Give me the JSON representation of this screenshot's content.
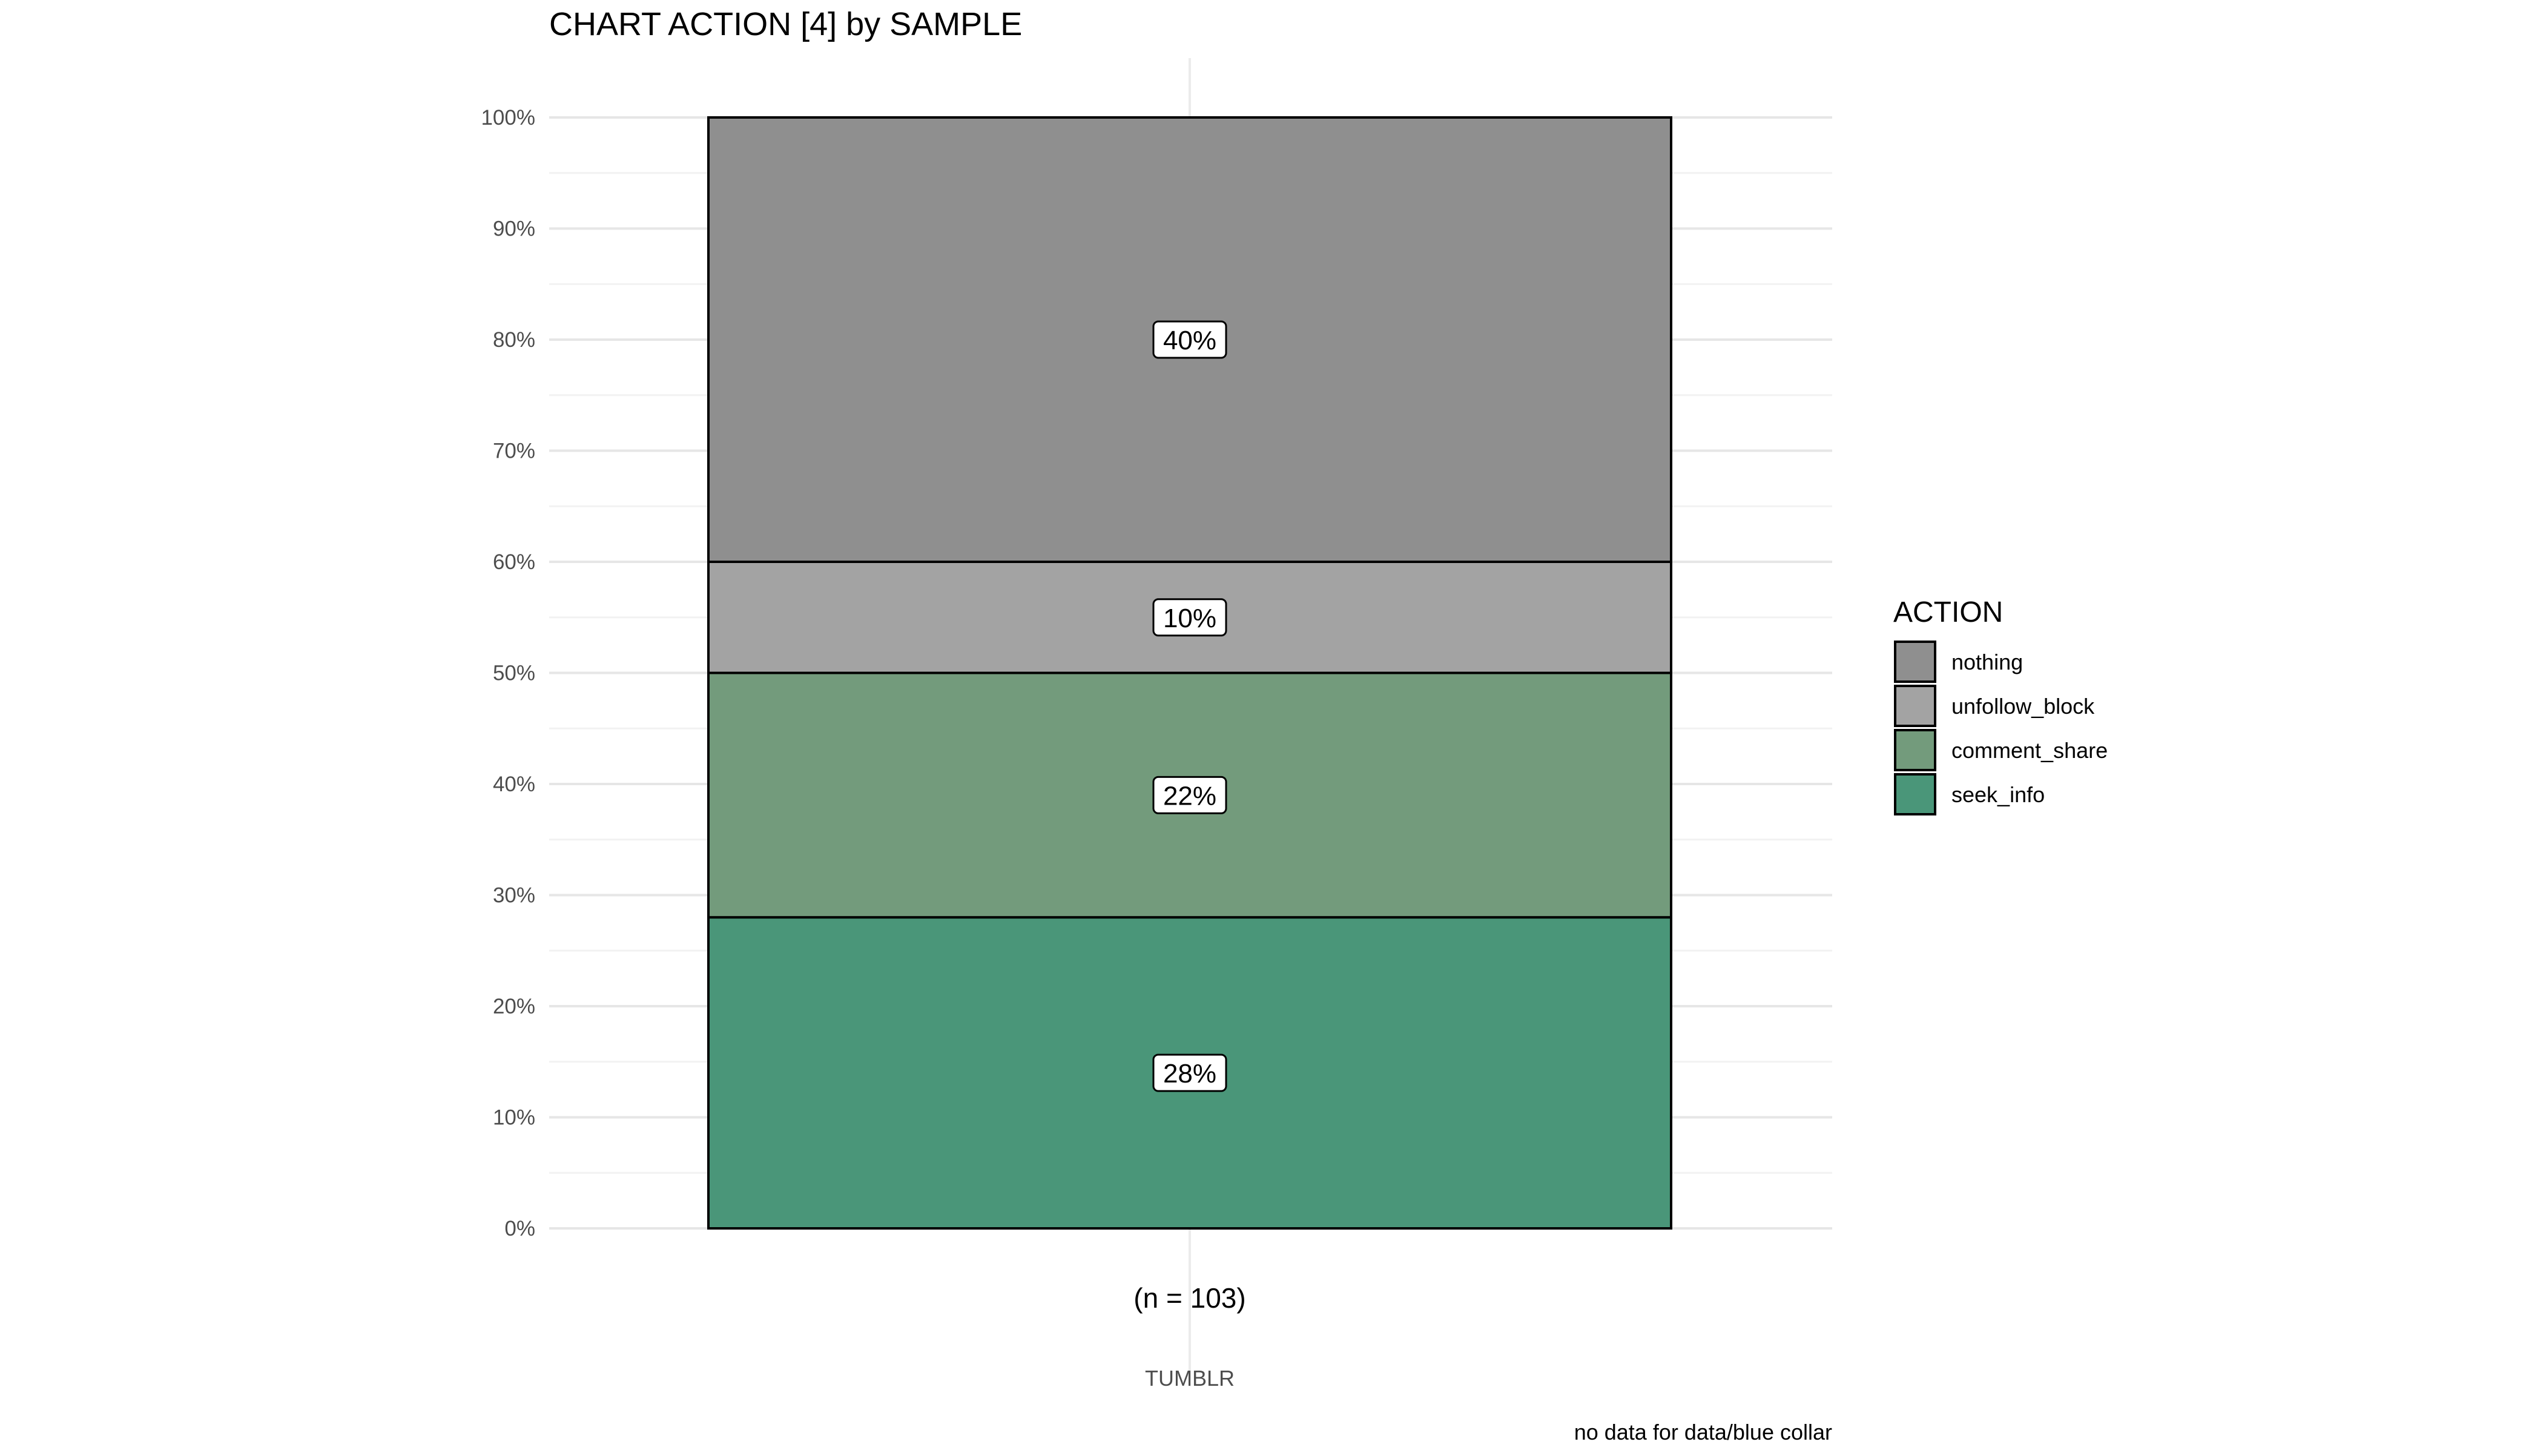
{
  "chart_data": {
    "type": "bar",
    "stacked": true,
    "percent": true,
    "title": "CHART ACTION [4] by SAMPLE",
    "categories": [
      "TUMBLR"
    ],
    "category_annotation": "(n = 103)",
    "ylim": [
      0,
      100
    ],
    "yticks": [
      0,
      10,
      20,
      30,
      40,
      50,
      60,
      70,
      80,
      90,
      100
    ],
    "ytick_labels": [
      "0%",
      "10%",
      "20%",
      "30%",
      "40%",
      "50%",
      "60%",
      "70%",
      "80%",
      "90%",
      "100%"
    ],
    "grid": true,
    "legend_title": "ACTION",
    "legend_position": "right",
    "series": [
      {
        "name": "seek_info",
        "values": [
          28
        ],
        "label": "28%",
        "color": "#4a9679"
      },
      {
        "name": "comment_share",
        "values": [
          22
        ],
        "label": "22%",
        "color": "#739b7c"
      },
      {
        "name": "unfollow_block",
        "values": [
          10
        ],
        "label": "10%",
        "color": "#a3a3a3"
      },
      {
        "name": "nothing",
        "values": [
          40
        ],
        "label": "40%",
        "color": "#8f8f8f"
      }
    ],
    "legend_order": [
      "nothing",
      "unfollow_block",
      "comment_share",
      "seek_info"
    ],
    "caption": "no data for data/blue collar"
  }
}
